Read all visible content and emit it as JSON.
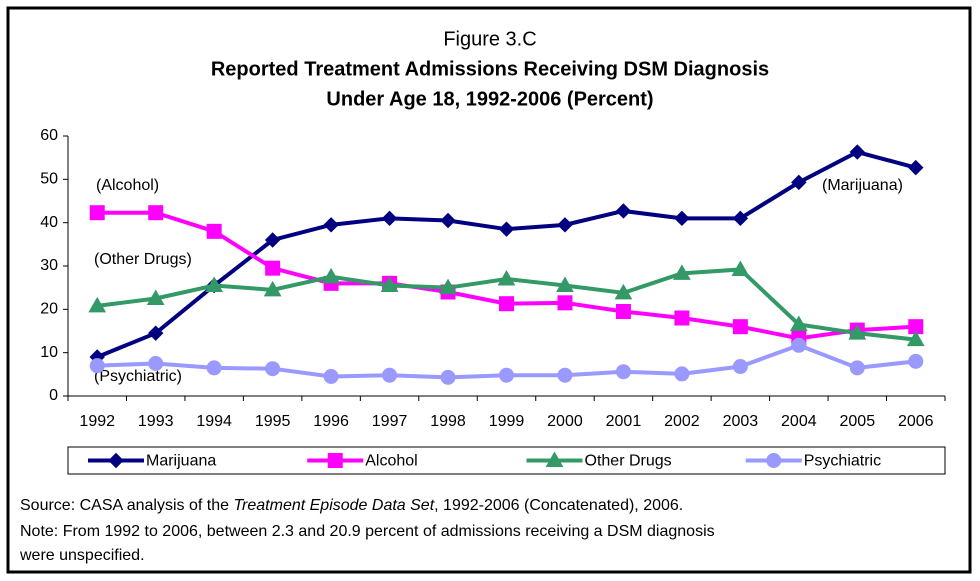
{
  "chart_data": {
    "type": "line",
    "figure_label": "Figure 3.C",
    "title": "Reported Treatment Admissions Receiving DSM Diagnosis",
    "subtitle": "Under Age 18, 1992-2006 (Percent)",
    "categories": [
      "1992",
      "1993",
      "1994",
      "1995",
      "1996",
      "1997",
      "1998",
      "1999",
      "2000",
      "2001",
      "2002",
      "2003",
      "2004",
      "2005",
      "2006"
    ],
    "series": [
      {
        "name": "Marijuana",
        "color": "#000080",
        "marker": "diamond",
        "values": [
          9,
          14.5,
          25.5,
          36,
          39.5,
          41,
          40.5,
          38.5,
          39.5,
          42.7,
          41,
          41,
          49.3,
          56.3,
          52.7
        ]
      },
      {
        "name": "Alcohol",
        "color": "#ff00ff",
        "marker": "square",
        "values": [
          42.3,
          42.3,
          38,
          29.5,
          26,
          26,
          24,
          21.3,
          21.5,
          19.5,
          18,
          16,
          13.3,
          15.2,
          16
        ]
      },
      {
        "name": "Other Drugs",
        "color": "#339966",
        "marker": "triangle",
        "values": [
          20.8,
          22.5,
          25.5,
          24.5,
          27.5,
          25.5,
          25,
          27,
          25.5,
          23.8,
          28.3,
          29.2,
          16.5,
          14.5,
          13
        ]
      },
      {
        "name": "Psychiatric",
        "color": "#9999ff",
        "marker": "circle",
        "values": [
          7,
          7.5,
          6.5,
          6.3,
          4.5,
          4.8,
          4.3,
          4.8,
          4.8,
          5.6,
          5.1,
          6.8,
          11.7,
          6.5,
          8
        ]
      }
    ],
    "annotations": [
      "(Alcohol)",
      "(Other Drugs)",
      "(Psychiatric)",
      "(Marijuana)"
    ],
    "ylim": [
      0,
      60
    ],
    "yticks": [
      0,
      10,
      20,
      30,
      40,
      50,
      60
    ],
    "legend": "bottom",
    "source": [
      "Source:  CASA analysis of the ",
      "Treatment Episode Data Set",
      ", 1992-2006 (Concatenated), 2006."
    ],
    "note": [
      "Note:  From 1992 to 2006, between 2.3 and 20.9 percent of admissions receiving a DSM diagnosis",
      "were unspecified."
    ]
  }
}
